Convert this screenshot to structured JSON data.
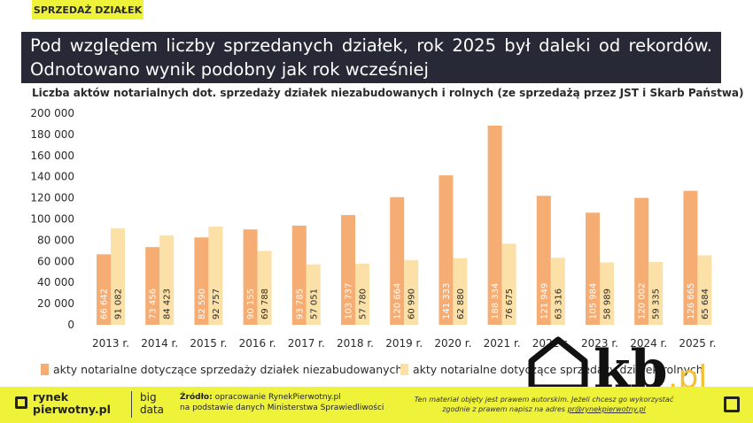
{
  "tag": "SPRZEDAŻ DZIAŁEK",
  "headline": "Pod względem liczby sprzedanych działek, rok 2025 był daleki od rekordów. Odnotowano wynik podobny jak rok wcześniej",
  "chart_data": {
    "type": "bar",
    "title": "Liczba aktów notarialnych dot. sprzedaży działek niezabudowanych i rolnych (ze sprzedażą przez JST i Skarb Państwa)",
    "categories": [
      "2013 r.",
      "2014 r.",
      "2015 r.",
      "2016 r.",
      "2017 r.",
      "2018 r.",
      "2019 r.",
      "2020 r.",
      "2021 r.",
      "2022 r.",
      "2023 r.",
      "2024 r.",
      "2025 r."
    ],
    "series": [
      {
        "name": "akty notarialne dotyczące sprzedaży działek niezabudowanych",
        "color": "#f5ad74",
        "values": [
          66642,
          73456,
          82590,
          90155,
          93785,
          103737,
          120664,
          141333,
          188334,
          121949,
          105984,
          120002,
          126665
        ],
        "labels": [
          "66 642",
          "73 456",
          "82 590",
          "90 155",
          "93 785",
          "103 737",
          "120 664",
          "141 333",
          "188 334",
          "121 949",
          "105 984",
          "120 002",
          "126 665"
        ]
      },
      {
        "name": "akty notarialne dotyczące sprzedaży działek rolnych",
        "color": "#fbe0a8",
        "values": [
          91082,
          84423,
          92757,
          69788,
          57051,
          57780,
          60990,
          62880,
          76675,
          63316,
          58989,
          59335,
          65684
        ],
        "labels": [
          "91 082",
          "84 423",
          "92 757",
          "69 788",
          "57 051",
          "57 780",
          "60 990",
          "62 880",
          "76 675",
          "63 316",
          "58 989",
          "59 335",
          "65 684"
        ]
      }
    ],
    "yticks": [
      "0",
      "20 000",
      "40 000",
      "60 000",
      "80 000",
      "100 000",
      "120 000",
      "140 000",
      "160 000",
      "180 000",
      "200 000"
    ],
    "ylim": [
      0,
      200000
    ],
    "grid": false,
    "legend": "bottom"
  },
  "footer": {
    "logo_line1": "rynek",
    "logo_line2": "pierwotny.pl",
    "bigdata_line1": "big",
    "bigdata_line2": "data",
    "source_label": "Źródło:",
    "source_line1": " opracowanie RynekPierwotny.pl",
    "source_line2": "na podstawie danych Ministerstwa Sprawiedliwości",
    "notice_line1": "Ten materiał objęty jest prawem autorskim. Jeżeli chcesz go wykorzystać",
    "notice_line2_a": "zgodnie z prawem napisz na adres ",
    "notice_email": "pr@rynekpierwotny.pl"
  },
  "watermark": {
    "brand": "kb",
    "tld": ".pl",
    "colors": {
      "brand": "#111111",
      "tld": "#f2c230"
    }
  }
}
